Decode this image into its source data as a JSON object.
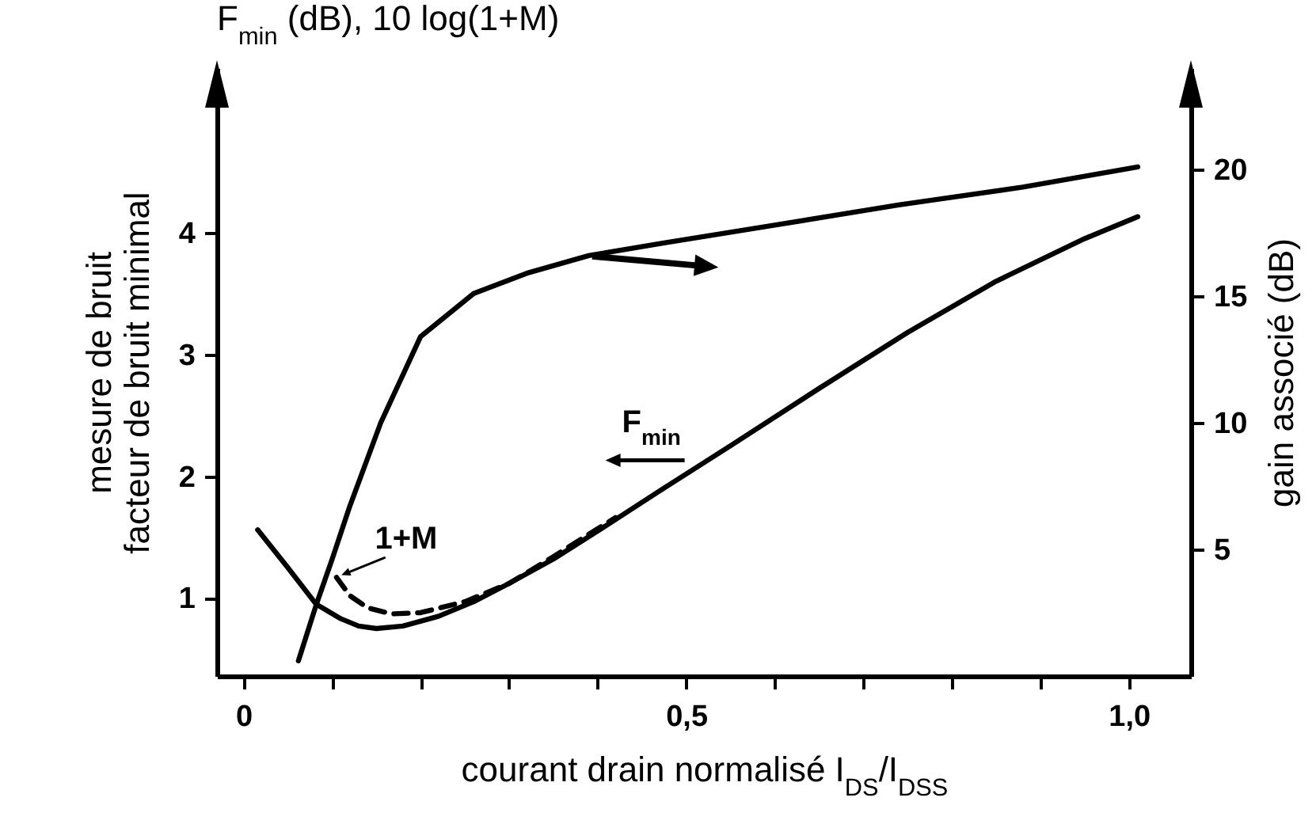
{
  "chart_data": {
    "type": "line",
    "title": "F$_{min}$ (dB), 10 log(1+M)",
    "xlabel": "courant drain normalisé I$_{DS}$/I$_{DSS}$",
    "ylabel": "mesure de bruit\nfacteur de bruit minimal",
    "y2label": "gain associé (dB)",
    "xlim": [
      -0.03,
      1.07
    ],
    "xticks": [
      0,
      {
        "value": 0.1,
        "label": null
      },
      {
        "value": 0.2,
        "label": null
      },
      {
        "value": 0.3,
        "label": null
      },
      {
        "value": 0.4,
        "label": null
      },
      {
        "value": 0.5,
        "label": "0,5"
      },
      {
        "value": 0.6,
        "label": null
      },
      {
        "value": 0.7,
        "label": null
      },
      {
        "value": 0.8,
        "label": null
      },
      {
        "value": 0.9,
        "label": null
      },
      {
        "value": 1,
        "label": "1,0"
      }
    ],
    "ylim": [
      0.36,
      5.35
    ],
    "yticks": [
      1,
      2,
      3,
      4
    ],
    "y2lim": [
      0,
      24
    ],
    "y2ticks": [
      5,
      10,
      15,
      20
    ],
    "series": [
      {
        "color": "#000000",
        "line_style": "solid",
        "x": [
          0.016,
          0.05,
          0.082,
          0.11,
          0.13,
          0.15,
          0.18,
          0.22,
          0.26,
          0.3,
          0.35,
          0.4,
          0.47,
          0.55,
          0.65,
          0.75,
          0.85,
          0.95,
          1.01
        ],
        "values": [
          1.56,
          1.25,
          0.95,
          0.83,
          0.77,
          0.75,
          0.77,
          0.85,
          0.97,
          1.12,
          1.32,
          1.55,
          1.88,
          2.25,
          2.72,
          3.18,
          3.6,
          3.95,
          4.13
        ]
      },
      {
        "color": "#000000",
        "line_style": "dashed",
        "x": [
          0.105,
          0.12,
          0.14,
          0.167,
          0.2,
          0.25,
          0.3,
          0.35,
          0.42
        ],
        "values": [
          1.17,
          1.02,
          0.92,
          0.87,
          0.88,
          0.97,
          1.12,
          1.34,
          1.66
        ]
      },
      {
        "color": "#000000",
        "line_style": "solid",
        "axis": "y2",
        "x": [
          0.062,
          0.082,
          0.1,
          0.12,
          0.155,
          0.2,
          0.26,
          0.32,
          0.39,
          0.475,
          0.6,
          0.74,
          0.88,
          1.01
        ],
        "values": [
          0.6,
          2.8,
          4.6,
          6.7,
          10,
          13.4,
          15.1,
          15.9,
          16.6,
          17.1,
          17.8,
          18.6,
          19.3,
          20.1
        ]
      }
    ],
    "annotations": [
      {
        "text": "F$_{min}$",
        "x": 0.5,
        "y": 2.0
      },
      {
        "text": "1+M",
        "x": 0.105,
        "y": 1.17
      }
    ]
  }
}
